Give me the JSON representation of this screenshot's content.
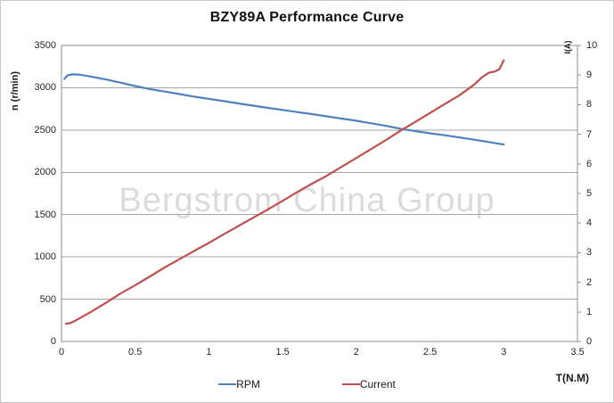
{
  "watermark": "Bergstrom China Group",
  "colors": {
    "rpm_line": "#4F81BD",
    "current_line": "#C0504D",
    "gridline": "#A6A6A6",
    "axis": "#8C8C8C",
    "text": "#262626",
    "watermark_text": "#DBDBDB",
    "frame_border": "#C9C9C9"
  },
  "chart_data": {
    "type": "line",
    "title": "BZY89A Performance Curve",
    "grid": "horizontal",
    "legend_position": "bottom",
    "x_axis": {
      "label": "T(N.M)",
      "min": 0,
      "max": 3.5,
      "ticks": [
        0,
        0.5,
        1,
        1.5,
        2,
        2.5,
        3,
        3.5
      ]
    },
    "y_left": {
      "label": "n (r/min)",
      "min": 0,
      "max": 3500,
      "ticks": [
        0,
        500,
        1000,
        1500,
        2000,
        2500,
        3000,
        3500
      ]
    },
    "y_right": {
      "label": "I(A)",
      "min": 0,
      "max": 10,
      "ticks": [
        0,
        1,
        2,
        3,
        4,
        5,
        6,
        7,
        8,
        9,
        10
      ]
    },
    "series": [
      {
        "name": "RPM",
        "axis": "left",
        "color": "#4F81BD",
        "points": [
          [
            0.02,
            3105
          ],
          [
            0.04,
            3145
          ],
          [
            0.07,
            3158
          ],
          [
            0.12,
            3155
          ],
          [
            0.2,
            3132
          ],
          [
            0.3,
            3098
          ],
          [
            0.4,
            3060
          ],
          [
            0.5,
            3020
          ],
          [
            0.6,
            2985
          ],
          [
            0.7,
            2955
          ],
          [
            0.8,
            2925
          ],
          [
            0.9,
            2895
          ],
          [
            1.0,
            2868
          ],
          [
            1.1,
            2842
          ],
          [
            1.2,
            2815
          ],
          [
            1.3,
            2788
          ],
          [
            1.4,
            2762
          ],
          [
            1.5,
            2738
          ],
          [
            1.6,
            2712
          ],
          [
            1.7,
            2688
          ],
          [
            1.8,
            2662
          ],
          [
            1.9,
            2636
          ],
          [
            2.0,
            2610
          ],
          [
            2.1,
            2580
          ],
          [
            2.2,
            2550
          ],
          [
            2.3,
            2515
          ],
          [
            2.4,
            2488
          ],
          [
            2.5,
            2462
          ],
          [
            2.6,
            2438
          ],
          [
            2.7,
            2412
          ],
          [
            2.8,
            2386
          ],
          [
            2.85,
            2372
          ],
          [
            2.9,
            2358
          ],
          [
            2.95,
            2342
          ],
          [
            3.0,
            2330
          ]
        ]
      },
      {
        "name": "Current",
        "axis": "right",
        "color": "#C0504D",
        "points": [
          [
            0.03,
            0.6
          ],
          [
            0.06,
            0.62
          ],
          [
            0.1,
            0.72
          ],
          [
            0.2,
            1.0
          ],
          [
            0.3,
            1.3
          ],
          [
            0.4,
            1.62
          ],
          [
            0.5,
            1.9
          ],
          [
            0.6,
            2.2
          ],
          [
            0.7,
            2.5
          ],
          [
            0.8,
            2.78
          ],
          [
            0.9,
            3.06
          ],
          [
            1.0,
            3.33
          ],
          [
            1.1,
            3.62
          ],
          [
            1.2,
            3.9
          ],
          [
            1.3,
            4.18
          ],
          [
            1.4,
            4.46
          ],
          [
            1.5,
            4.75
          ],
          [
            1.6,
            5.05
          ],
          [
            1.7,
            5.33
          ],
          [
            1.8,
            5.6
          ],
          [
            1.9,
            5.9
          ],
          [
            2.0,
            6.2
          ],
          [
            2.1,
            6.5
          ],
          [
            2.2,
            6.8
          ],
          [
            2.3,
            7.12
          ],
          [
            2.4,
            7.42
          ],
          [
            2.5,
            7.72
          ],
          [
            2.6,
            8.02
          ],
          [
            2.7,
            8.32
          ],
          [
            2.75,
            8.5
          ],
          [
            2.8,
            8.68
          ],
          [
            2.85,
            8.92
          ],
          [
            2.9,
            9.08
          ],
          [
            2.94,
            9.12
          ],
          [
            2.97,
            9.2
          ],
          [
            3.0,
            9.5
          ]
        ]
      }
    ]
  }
}
